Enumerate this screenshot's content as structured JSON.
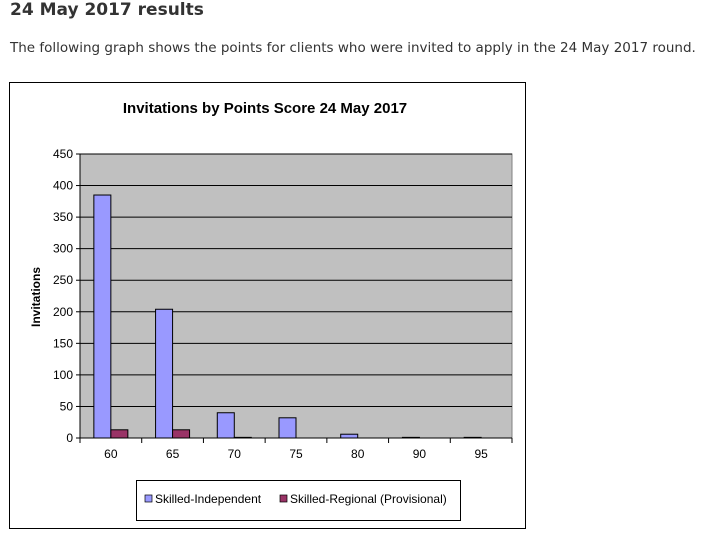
{
  "heading": "24 May 2017 results",
  "intro": "The following graph shows the points for clients who were invited to apply in the 24 May 2017 round.",
  "chart_data": {
    "type": "bar",
    "title": "Invitations by Points Score 24 May 2017",
    "xlabel": "",
    "ylabel": "Invitations",
    "ylim": [
      0,
      450
    ],
    "yticks": [
      0,
      50,
      100,
      150,
      200,
      250,
      300,
      350,
      400,
      450
    ],
    "categories": [
      "60",
      "65",
      "70",
      "75",
      "80",
      "90",
      "95"
    ],
    "grid": true,
    "legend": "bottom",
    "series": [
      {
        "name": "Skilled-Independent",
        "color": "#9999ff",
        "values": [
          385,
          204,
          40,
          32,
          6,
          1,
          1
        ]
      },
      {
        "name": "Skilled-Regional (Provisional)",
        "color": "#993366",
        "values": [
          13,
          13,
          1,
          0,
          0,
          0,
          0
        ]
      }
    ]
  }
}
